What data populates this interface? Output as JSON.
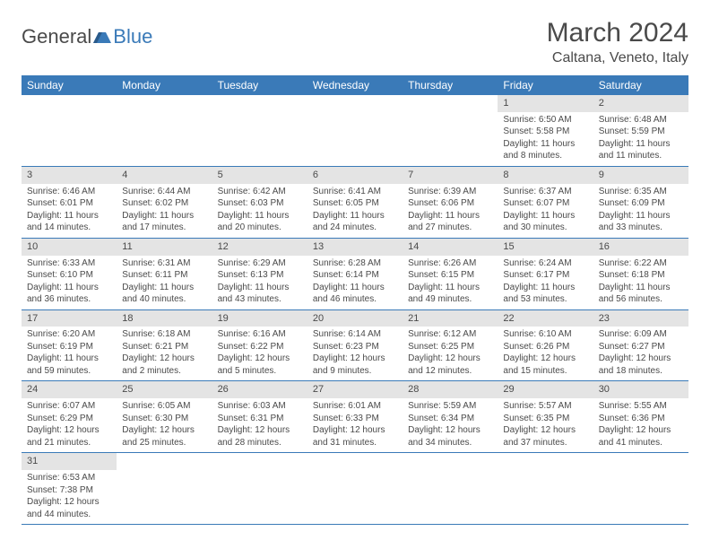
{
  "brand": {
    "main": "General",
    "sub": "Blue"
  },
  "title": "March 2024",
  "location": "Caltana, Veneto, Italy",
  "colors": {
    "header_bg": "#3a7ab8",
    "header_text": "#ffffff",
    "daynum_bg": "#e4e4e4",
    "text": "#4a4a4a",
    "row_border": "#3a7ab8",
    "background": "#ffffff"
  },
  "typography": {
    "title_fontsize": 30,
    "location_fontsize": 16,
    "weekday_fontsize": 12,
    "daynum_fontsize": 11,
    "cell_fontsize": 10
  },
  "weekdays": [
    "Sunday",
    "Monday",
    "Tuesday",
    "Wednesday",
    "Thursday",
    "Friday",
    "Saturday"
  ],
  "weeks": [
    [
      {
        "empty": true
      },
      {
        "empty": true
      },
      {
        "empty": true
      },
      {
        "empty": true
      },
      {
        "empty": true
      },
      {
        "day": "1",
        "sunrise": "Sunrise: 6:50 AM",
        "sunset": "Sunset: 5:58 PM",
        "daylight": "Daylight: 11 hours and 8 minutes."
      },
      {
        "day": "2",
        "sunrise": "Sunrise: 6:48 AM",
        "sunset": "Sunset: 5:59 PM",
        "daylight": "Daylight: 11 hours and 11 minutes."
      }
    ],
    [
      {
        "day": "3",
        "sunrise": "Sunrise: 6:46 AM",
        "sunset": "Sunset: 6:01 PM",
        "daylight": "Daylight: 11 hours and 14 minutes."
      },
      {
        "day": "4",
        "sunrise": "Sunrise: 6:44 AM",
        "sunset": "Sunset: 6:02 PM",
        "daylight": "Daylight: 11 hours and 17 minutes."
      },
      {
        "day": "5",
        "sunrise": "Sunrise: 6:42 AM",
        "sunset": "Sunset: 6:03 PM",
        "daylight": "Daylight: 11 hours and 20 minutes."
      },
      {
        "day": "6",
        "sunrise": "Sunrise: 6:41 AM",
        "sunset": "Sunset: 6:05 PM",
        "daylight": "Daylight: 11 hours and 24 minutes."
      },
      {
        "day": "7",
        "sunrise": "Sunrise: 6:39 AM",
        "sunset": "Sunset: 6:06 PM",
        "daylight": "Daylight: 11 hours and 27 minutes."
      },
      {
        "day": "8",
        "sunrise": "Sunrise: 6:37 AM",
        "sunset": "Sunset: 6:07 PM",
        "daylight": "Daylight: 11 hours and 30 minutes."
      },
      {
        "day": "9",
        "sunrise": "Sunrise: 6:35 AM",
        "sunset": "Sunset: 6:09 PM",
        "daylight": "Daylight: 11 hours and 33 minutes."
      }
    ],
    [
      {
        "day": "10",
        "sunrise": "Sunrise: 6:33 AM",
        "sunset": "Sunset: 6:10 PM",
        "daylight": "Daylight: 11 hours and 36 minutes."
      },
      {
        "day": "11",
        "sunrise": "Sunrise: 6:31 AM",
        "sunset": "Sunset: 6:11 PM",
        "daylight": "Daylight: 11 hours and 40 minutes."
      },
      {
        "day": "12",
        "sunrise": "Sunrise: 6:29 AM",
        "sunset": "Sunset: 6:13 PM",
        "daylight": "Daylight: 11 hours and 43 minutes."
      },
      {
        "day": "13",
        "sunrise": "Sunrise: 6:28 AM",
        "sunset": "Sunset: 6:14 PM",
        "daylight": "Daylight: 11 hours and 46 minutes."
      },
      {
        "day": "14",
        "sunrise": "Sunrise: 6:26 AM",
        "sunset": "Sunset: 6:15 PM",
        "daylight": "Daylight: 11 hours and 49 minutes."
      },
      {
        "day": "15",
        "sunrise": "Sunrise: 6:24 AM",
        "sunset": "Sunset: 6:17 PM",
        "daylight": "Daylight: 11 hours and 53 minutes."
      },
      {
        "day": "16",
        "sunrise": "Sunrise: 6:22 AM",
        "sunset": "Sunset: 6:18 PM",
        "daylight": "Daylight: 11 hours and 56 minutes."
      }
    ],
    [
      {
        "day": "17",
        "sunrise": "Sunrise: 6:20 AM",
        "sunset": "Sunset: 6:19 PM",
        "daylight": "Daylight: 11 hours and 59 minutes."
      },
      {
        "day": "18",
        "sunrise": "Sunrise: 6:18 AM",
        "sunset": "Sunset: 6:21 PM",
        "daylight": "Daylight: 12 hours and 2 minutes."
      },
      {
        "day": "19",
        "sunrise": "Sunrise: 6:16 AM",
        "sunset": "Sunset: 6:22 PM",
        "daylight": "Daylight: 12 hours and 5 minutes."
      },
      {
        "day": "20",
        "sunrise": "Sunrise: 6:14 AM",
        "sunset": "Sunset: 6:23 PM",
        "daylight": "Daylight: 12 hours and 9 minutes."
      },
      {
        "day": "21",
        "sunrise": "Sunrise: 6:12 AM",
        "sunset": "Sunset: 6:25 PM",
        "daylight": "Daylight: 12 hours and 12 minutes."
      },
      {
        "day": "22",
        "sunrise": "Sunrise: 6:10 AM",
        "sunset": "Sunset: 6:26 PM",
        "daylight": "Daylight: 12 hours and 15 minutes."
      },
      {
        "day": "23",
        "sunrise": "Sunrise: 6:09 AM",
        "sunset": "Sunset: 6:27 PM",
        "daylight": "Daylight: 12 hours and 18 minutes."
      }
    ],
    [
      {
        "day": "24",
        "sunrise": "Sunrise: 6:07 AM",
        "sunset": "Sunset: 6:29 PM",
        "daylight": "Daylight: 12 hours and 21 minutes."
      },
      {
        "day": "25",
        "sunrise": "Sunrise: 6:05 AM",
        "sunset": "Sunset: 6:30 PM",
        "daylight": "Daylight: 12 hours and 25 minutes."
      },
      {
        "day": "26",
        "sunrise": "Sunrise: 6:03 AM",
        "sunset": "Sunset: 6:31 PM",
        "daylight": "Daylight: 12 hours and 28 minutes."
      },
      {
        "day": "27",
        "sunrise": "Sunrise: 6:01 AM",
        "sunset": "Sunset: 6:33 PM",
        "daylight": "Daylight: 12 hours and 31 minutes."
      },
      {
        "day": "28",
        "sunrise": "Sunrise: 5:59 AM",
        "sunset": "Sunset: 6:34 PM",
        "daylight": "Daylight: 12 hours and 34 minutes."
      },
      {
        "day": "29",
        "sunrise": "Sunrise: 5:57 AM",
        "sunset": "Sunset: 6:35 PM",
        "daylight": "Daylight: 12 hours and 37 minutes."
      },
      {
        "day": "30",
        "sunrise": "Sunrise: 5:55 AM",
        "sunset": "Sunset: 6:36 PM",
        "daylight": "Daylight: 12 hours and 41 minutes."
      }
    ],
    [
      {
        "day": "31",
        "sunrise": "Sunrise: 6:53 AM",
        "sunset": "Sunset: 7:38 PM",
        "daylight": "Daylight: 12 hours and 44 minutes."
      },
      {
        "empty": true
      },
      {
        "empty": true
      },
      {
        "empty": true
      },
      {
        "empty": true
      },
      {
        "empty": true
      },
      {
        "empty": true
      }
    ]
  ]
}
